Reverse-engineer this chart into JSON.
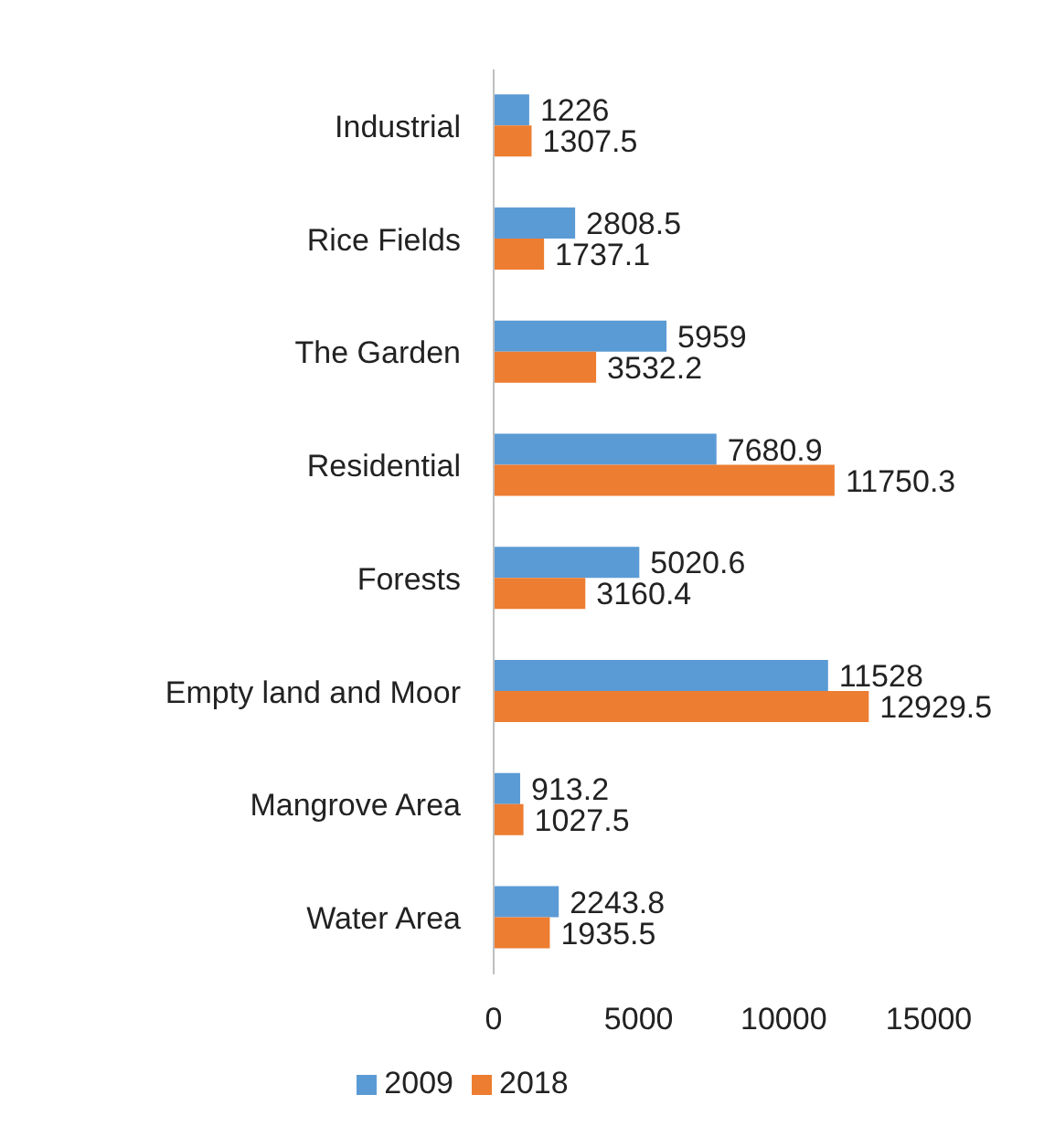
{
  "chart_data": {
    "type": "bar",
    "orientation": "horizontal",
    "categories": [
      "Industrial",
      "Rice Fields",
      "The Garden",
      "Residential",
      "Forests",
      "Empty land and Moor",
      "Mangrove Area",
      "Water Area"
    ],
    "series": [
      {
        "name": "2009",
        "color": "#5b9bd5",
        "values": [
          1226,
          2808.5,
          5959,
          7680.9,
          5020.6,
          11528,
          913.2,
          2243.8
        ]
      },
      {
        "name": "2018",
        "color": "#ed7d31",
        "values": [
          1307.5,
          1737.1,
          3532.2,
          11750.3,
          3160.4,
          12929.5,
          1027.5,
          1935.5
        ]
      }
    ],
    "xlim": [
      0,
      15000
    ],
    "xticks": [
      0,
      5000,
      10000,
      15000
    ],
    "data_labels": true,
    "grid": false,
    "legend": "bottom"
  }
}
